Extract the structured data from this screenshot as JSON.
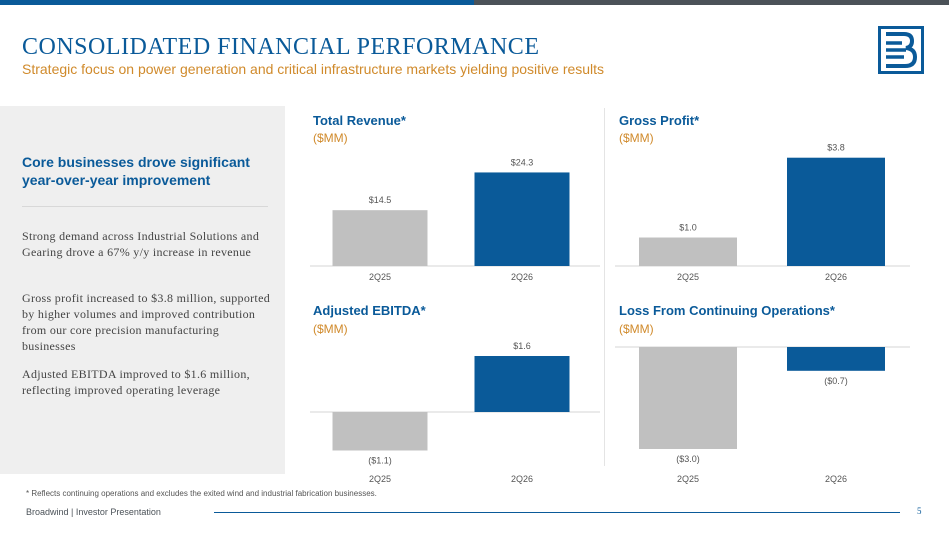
{
  "header": {
    "title": "CONSOLIDATED FINANCIAL PERFORMANCE",
    "subtitle": "Strategic focus on power generation and critical infrastructure markets yielding positive results"
  },
  "colors": {
    "brand_blue": "#0a5a99",
    "bar_grey": "#c0c0c0",
    "accent_orange": "#d08a2b"
  },
  "left_panel": {
    "heading": "Core businesses drove significant year-over-year improvement",
    "paragraphs": [
      "Strong demand across Industrial Solutions and Gearing drove a 67% y/y increase in revenue",
      "Gross profit increased to $3.8 million, supported by higher volumes and improved contribution from our core precision manufacturing businesses",
      "Adjusted EBITDA improved to $1.6 million, reflecting improved operating leverage"
    ]
  },
  "chart_data": [
    {
      "type": "bar",
      "title": "Total Revenue*",
      "unit": "($MM)",
      "categories": [
        "2Q25",
        "2Q26"
      ],
      "values": [
        14.5,
        24.3
      ],
      "labels": [
        "$14.5",
        "$24.3"
      ]
    },
    {
      "type": "bar",
      "title": "Gross Profit*",
      "unit": "($MM)",
      "categories": [
        "2Q25",
        "2Q26"
      ],
      "values": [
        1.0,
        3.8
      ],
      "labels": [
        "$1.0",
        "$3.8"
      ]
    },
    {
      "type": "bar",
      "title": "Adjusted EBITDA*",
      "unit": "($MM)",
      "categories": [
        "2Q25",
        "2Q26"
      ],
      "values": [
        -1.1,
        1.6
      ],
      "labels": [
        "($1.1)",
        "$1.6"
      ]
    },
    {
      "type": "bar",
      "title": "Loss From Continuing Operations*",
      "unit": "($MM)",
      "categories": [
        "2Q25",
        "2Q26"
      ],
      "values": [
        -3.0,
        -0.7
      ],
      "labels": [
        "($3.0)",
        "($0.7)"
      ]
    }
  ],
  "footnote": "* Reflects continuing operations and excludes the exited wind and industrial fabrication businesses.",
  "footer": {
    "left": "Broadwind  | Investor Presentation",
    "page": "5"
  }
}
